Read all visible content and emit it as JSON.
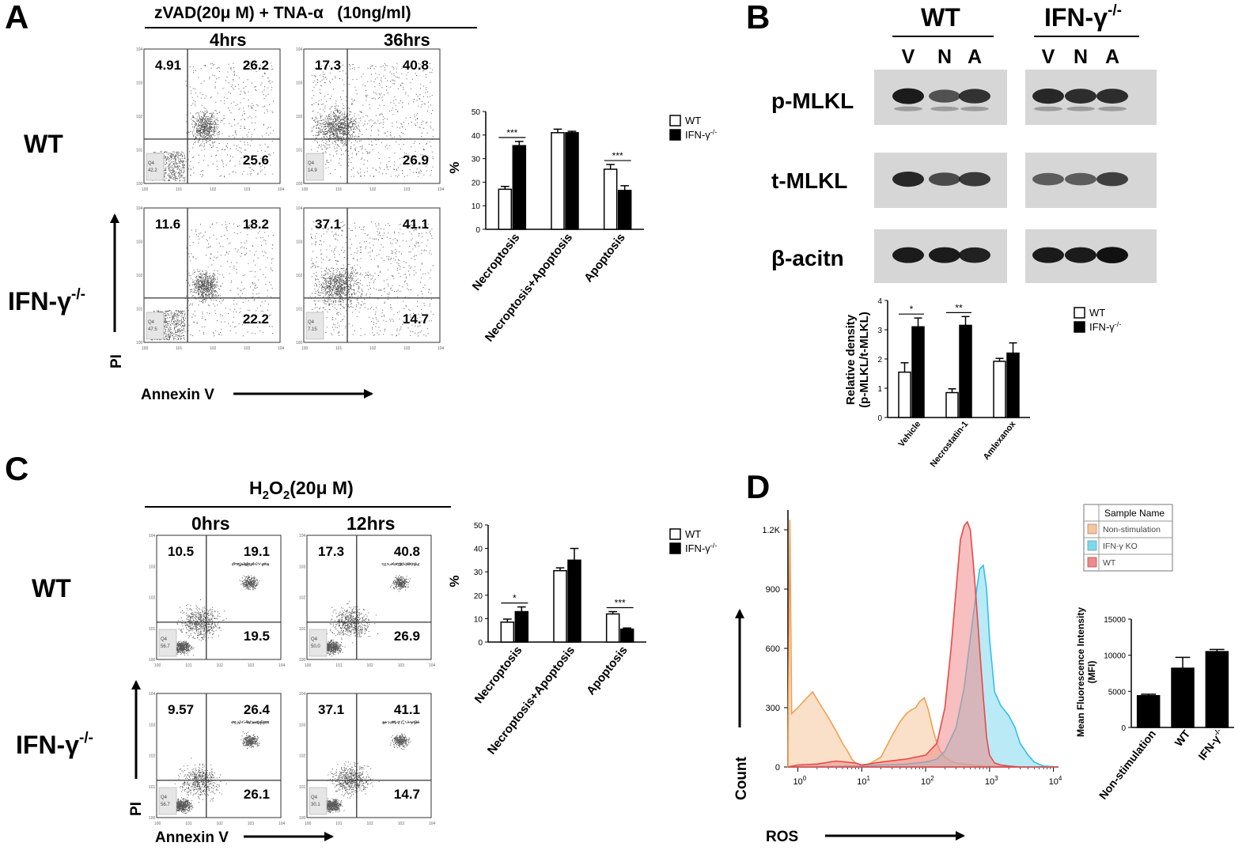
{
  "panels": {
    "A": {
      "letter": "A",
      "treatment": "zVAD(20μ M) + TNA-α   (10ng/ml)",
      "times": [
        "4hrs",
        "36hrs"
      ],
      "rows": [
        "WT",
        "IFN-γ"
      ],
      "row_sup": "-/-",
      "xlabel": "Annexin V",
      "ylabel": "PI",
      "flow": [
        {
          "name": "wt-4h",
          "q": [
            "4.91",
            "26.2",
            "25.6"
          ],
          "gate": "Q4",
          "gate_val": "42.2"
        },
        {
          "name": "wt-36h",
          "q": [
            "17.3",
            "40.8",
            "26.9"
          ],
          "gate": "Q4",
          "gate_val": "14.9"
        },
        {
          "name": "ko-4h",
          "q": [
            "11.6",
            "18.2",
            "22.2"
          ],
          "gate": "Q4",
          "gate_val": "47.5"
        },
        {
          "name": "ko-36h",
          "q": [
            "37.1",
            "41.1",
            "14.7"
          ],
          "gate": "Q4",
          "gate_val": "7.15"
        }
      ]
    },
    "B": {
      "letter": "B",
      "groups": [
        "WT",
        "IFN-γ"
      ],
      "group_sup": "-/-",
      "lanes": [
        "V",
        "N",
        "A"
      ],
      "blots": [
        "p-MLKL",
        "t-MLKL",
        "β-acitn"
      ]
    },
    "C": {
      "letter": "C",
      "treatment_main": "H",
      "treatment_sub": "2",
      "treatment_o": "O",
      "treatment_rest": "(20μ M)",
      "times": [
        "0hrs",
        "12hrs"
      ],
      "rows": [
        "WT",
        "IFN-γ"
      ],
      "row_sup": "-/-",
      "xlabel": "Annexin V",
      "ylabel": "PI",
      "flow": [
        {
          "name": "wt-0h",
          "q": [
            "10.5",
            "19.1",
            "19.5"
          ],
          "gate": "Q4",
          "gate_val": "56.7"
        },
        {
          "name": "wt-12h",
          "q": [
            "17.3",
            "40.8",
            "26.9"
          ],
          "gate": "Q4",
          "gate_val": "50.0"
        },
        {
          "name": "ko-0h",
          "q": [
            "9.57",
            "26.4",
            "26.1"
          ],
          "gate": "Q4",
          "gate_val": "56.7"
        },
        {
          "name": "ko-12h",
          "q": [
            "37.1",
            "41.1",
            "14.7"
          ],
          "gate": "Q4",
          "gate_val": "30.1"
        }
      ]
    },
    "D": {
      "letter": "D",
      "xlabel": "ROS",
      "ylabel": "Count",
      "legend_title": "Sample Name",
      "legend": [
        {
          "label": "Non-stimulation",
          "color": "#f5c79a"
        },
        {
          "label": "IFN-γ KO",
          "color": "#7fd8ef"
        },
        {
          "label": "WT",
          "color": "#f08a8a"
        }
      ]
    }
  },
  "chart_data": [
    {
      "id": "bar-A",
      "type": "bar",
      "title": "",
      "ylabel": "%",
      "ylim": [
        0,
        50
      ],
      "yticks": [
        0,
        10,
        20,
        30,
        40,
        50
      ],
      "categories": [
        "Necroptosis",
        "Necroptosis+Apoptosis",
        "Apoptosis"
      ],
      "series": [
        {
          "name": "WT",
          "values": [
            17,
            41,
            25.5
          ],
          "errors": [
            1.2,
            1.5,
            2
          ]
        },
        {
          "name": "IFN-γ-/-",
          "values": [
            35.5,
            41,
            16.5
          ],
          "errors": [
            1.8,
            0.6,
            2
          ]
        }
      ],
      "legend": [
        "WT",
        "IFN-γ"
      ],
      "legend_sup": "-/-",
      "significance": [
        {
          "category": 0,
          "label": "***"
        },
        {
          "category": 2,
          "label": "***"
        }
      ]
    },
    {
      "id": "bar-B",
      "type": "bar",
      "title": "",
      "ylabel": "Relative density",
      "ylabel2": "(p-MLKL/t-MLKL)",
      "ylim": [
        0,
        4
      ],
      "yticks": [
        0,
        1,
        2,
        3,
        4
      ],
      "categories": [
        "Vehicle",
        "Necrostatin-1",
        "Amlexanox"
      ],
      "series": [
        {
          "name": "WT",
          "values": [
            1.55,
            0.85,
            1.92
          ],
          "errors": [
            0.32,
            0.13,
            0.1
          ]
        },
        {
          "name": "IFN-γ-/-",
          "values": [
            3.1,
            3.15,
            2.2
          ],
          "errors": [
            0.3,
            0.3,
            0.35
          ]
        }
      ],
      "legend": [
        "WT",
        "IFN-γ"
      ],
      "legend_sup": "-/-",
      "significance": [
        {
          "category": 0,
          "label": "*"
        },
        {
          "category": 1,
          "label": "**"
        }
      ]
    },
    {
      "id": "bar-C",
      "type": "bar",
      "title": "",
      "ylabel": "%",
      "ylim": [
        0,
        50
      ],
      "yticks": [
        0,
        10,
        20,
        30,
        40,
        50
      ],
      "categories": [
        "Necroptosis",
        "Necroptosis+Apoptosis",
        "Apoptosis"
      ],
      "series": [
        {
          "name": "WT",
          "values": [
            8.5,
            30.5,
            12
          ],
          "errors": [
            1.3,
            1.2,
            1
          ]
        },
        {
          "name": "IFN-γ-/-",
          "values": [
            13,
            35,
            5.5
          ],
          "errors": [
            2,
            5,
            0.5
          ]
        }
      ],
      "legend": [
        "WT",
        "IFN-γ"
      ],
      "legend_sup": "-/-",
      "significance": [
        {
          "category": 0,
          "label": "*"
        },
        {
          "category": 2,
          "label": "***"
        }
      ]
    },
    {
      "id": "bar-D",
      "type": "bar",
      "title": "",
      "ylabel": "Mean Fluorescence Intensity",
      "ylabel2": "(MFI)",
      "ylim": [
        0,
        15000
      ],
      "yticks": [
        0,
        5000,
        10000,
        15000
      ],
      "categories": [
        "Non-stimulation",
        "WT",
        "IFN-γ"
      ],
      "category_sup": [
        "",
        "",
        "-/-"
      ],
      "series": [
        {
          "name": "MFI",
          "values": [
            4400,
            8200,
            10500
          ],
          "errors": [
            200,
            1500,
            300
          ]
        }
      ]
    },
    {
      "id": "hist-D",
      "type": "area",
      "title": "",
      "xlabel": "ROS",
      "ylabel": "Count",
      "xscale": "log",
      "xlim": [
        0.7,
        12000
      ],
      "ylim": [
        0,
        1300
      ],
      "yticks": [
        0,
        300,
        600,
        900,
        1200
      ],
      "ytick_labels": [
        "0",
        "300",
        "600",
        "900",
        "1.2K"
      ],
      "xticks": [
        1,
        10,
        100,
        1000,
        10000
      ],
      "series": [
        {
          "name": "Non-stimulation",
          "color": "#f5c79a",
          "x": [
            0.7,
            0.75,
            0.8,
            1,
            1.3,
            1.7,
            2.2,
            3,
            4,
            5,
            6,
            7,
            8,
            10,
            13,
            20,
            30,
            40,
            50,
            60,
            70,
            80,
            95,
            110,
            130,
            150,
            170,
            200,
            250,
            300,
            400,
            600,
            800,
            1000,
            2000,
            12000
          ],
          "y": [
            0,
            1250,
            270,
            300,
            340,
            380,
            320,
            250,
            180,
            120,
            80,
            40,
            20,
            10,
            15,
            50,
            160,
            230,
            270,
            290,
            300,
            330,
            350,
            290,
            190,
            120,
            80,
            50,
            30,
            20,
            15,
            10,
            5,
            5,
            0,
            0
          ]
        },
        {
          "name": "WT",
          "color": "#f08a8a",
          "x": [
            0.7,
            1,
            2,
            4,
            8,
            10,
            20,
            50,
            100,
            150,
            200,
            250,
            300,
            350,
            400,
            450,
            500,
            550,
            600,
            700,
            800,
            900,
            1000,
            1200,
            1500,
            2000,
            3000,
            12000
          ],
          "y": [
            0,
            10,
            15,
            30,
            20,
            10,
            25,
            40,
            60,
            120,
            300,
            600,
            900,
            1150,
            1220,
            1240,
            1200,
            1050,
            900,
            600,
            350,
            150,
            60,
            20,
            10,
            5,
            0,
            0
          ]
        },
        {
          "name": "IFN-γ KO",
          "color": "#7fd8ef",
          "x": [
            0.7,
            10,
            20,
            50,
            100,
            150,
            200,
            300,
            400,
            500,
            600,
            700,
            800,
            900,
            1000,
            1200,
            1500,
            2000,
            2500,
            3000,
            4000,
            5000,
            7000,
            12000
          ],
          "y": [
            0,
            5,
            10,
            15,
            25,
            40,
            80,
            200,
            400,
            650,
            850,
            1000,
            1020,
            900,
            650,
            380,
            310,
            260,
            200,
            120,
            60,
            25,
            5,
            0
          ]
        }
      ]
    }
  ]
}
